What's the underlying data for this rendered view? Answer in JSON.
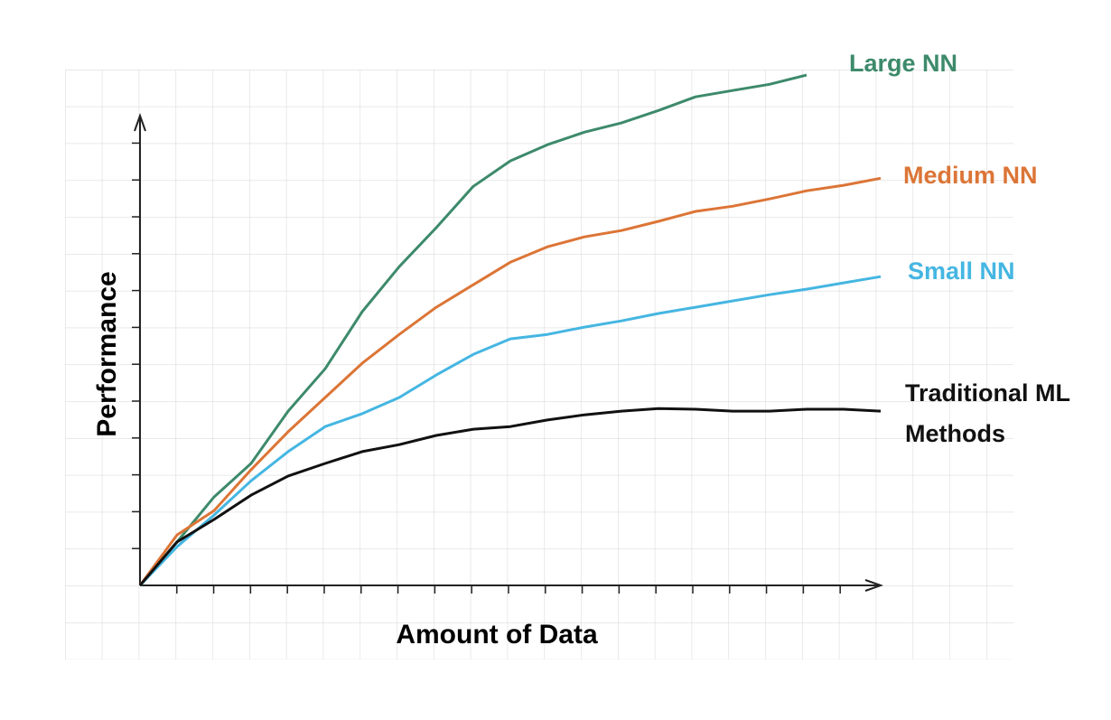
{
  "chart_data": {
    "type": "line",
    "x_label": "Amount of Data",
    "y_label": "Performance",
    "x": [
      0,
      1,
      2,
      3,
      4,
      5,
      6,
      7,
      8,
      9,
      10,
      11,
      12,
      13,
      14,
      15,
      16,
      17,
      18,
      19,
      20
    ],
    "xlim": [
      0,
      20
    ],
    "ylim": [
      0,
      14
    ],
    "series": [
      {
        "name": "Large NN",
        "color": "#3d8a6b",
        "values": [
          0,
          1.18,
          2.4,
          3.31,
          4.73,
          5.88,
          7.43,
          8.65,
          9.71,
          10.83,
          11.52,
          11.96,
          12.3,
          12.55,
          12.89,
          13.26,
          13.43,
          13.6,
          13.85,
          null,
          null
        ]
      },
      {
        "name": "Medium NN",
        "color": "#dc7536",
        "values": [
          0,
          1.37,
          2.03,
          3.14,
          4.17,
          5.1,
          6.03,
          6.81,
          7.55,
          8.16,
          8.77,
          9.19,
          9.46,
          9.63,
          9.88,
          10.15,
          10.29,
          10.49,
          10.71,
          10.86,
          11.05
        ]
      },
      {
        "name": "Small NN",
        "color": "#45b6e2",
        "values": [
          0,
          1.05,
          1.91,
          2.84,
          3.63,
          4.31,
          4.66,
          5.1,
          5.71,
          6.27,
          6.69,
          6.81,
          7.01,
          7.18,
          7.38,
          7.55,
          7.72,
          7.89,
          8.04,
          8.21,
          8.38
        ]
      },
      {
        "name": "Traditional ML Methods",
        "color": "#111111",
        "values": [
          0,
          1.18,
          1.79,
          2.45,
          2.97,
          3.31,
          3.63,
          3.82,
          4.07,
          4.24,
          4.31,
          4.49,
          4.63,
          4.73,
          4.8,
          4.78,
          4.73,
          4.73,
          4.78,
          4.78,
          4.73
        ]
      }
    ]
  }
}
